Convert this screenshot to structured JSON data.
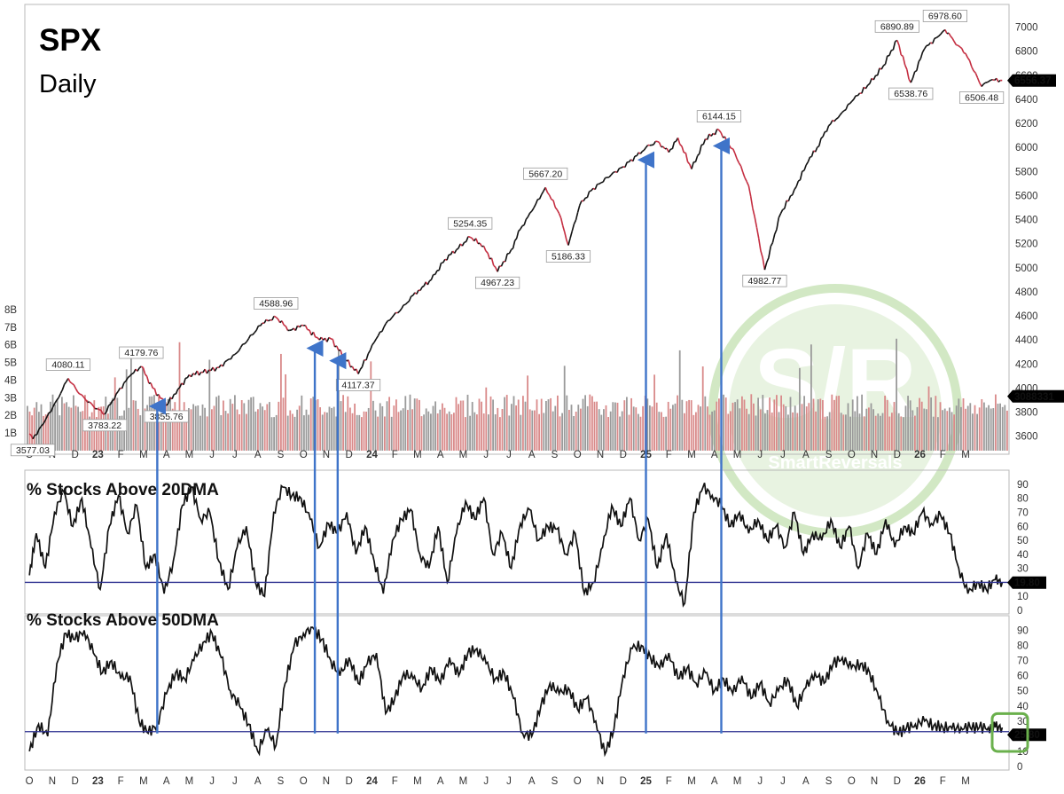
{
  "header": {
    "symbol": "SPX",
    "interval": "Daily"
  },
  "watermark": {
    "text": "SmartReversals",
    "monogram": "S/R"
  },
  "chart_data": [
    {
      "type": "line",
      "title": "SPX",
      "subtitle": "Daily",
      "ylim": [
        3450,
        7100
      ],
      "yticks": [
        3600,
        3800,
        4000,
        4200,
        4400,
        4600,
        4800,
        5000,
        5200,
        5400,
        5600,
        5800,
        6000,
        6200,
        6400,
        6600,
        6800,
        7000
      ],
      "last_value": "6556.37",
      "x": [
        0,
        0.15,
        0.6,
        1.2,
        1.7,
        2.2,
        2.8,
        3.3,
        3.8,
        4.4,
        4.9,
        5.4,
        6.0,
        6.5,
        7.0,
        7.6,
        8.3,
        9.0,
        9.6,
        10.2,
        10.8,
        11.4,
        12.0,
        12.7,
        13.2,
        13.8,
        14.4,
        15.1,
        15.7,
        16.3,
        16.8,
        17.2,
        17.6,
        18.2,
        18.7,
        19.3,
        19.9,
        20.5,
        21.1,
        21.5,
        22.0,
        22.6,
        23.2,
        23.6,
        24.1,
        24.6,
        25.3,
        26.0,
        26.6,
        27.0,
        27.5,
        28.0,
        28.4,
        29.0,
        29.6,
        30.2,
        30.9,
        31.5,
        32.2,
        32.9,
        33.5,
        34.1,
        34.5,
        35.0,
        35.5,
        36.1,
        36.8,
        37.4,
        38.0,
        38.6,
        39.2,
        39.9,
        40.1,
        40.5,
        41.0,
        41.7,
        42.1,
        42.6
      ],
      "values": [
        3620,
        3577.03,
        3700,
        3900,
        4080.11,
        3950,
        3850,
        3783.22,
        3950,
        4100,
        4179.76,
        4000,
        3855.76,
        3990,
        4110,
        4130,
        4170,
        4280,
        4410,
        4540,
        4588.96,
        4480,
        4520,
        4400,
        4410,
        4250,
        4117.37,
        4380,
        4560,
        4660,
        4770,
        4840,
        4900,
        5070,
        5150,
        5254.35,
        5180,
        4967.23,
        5150,
        5320,
        5470,
        5667.2,
        5450,
        5186.33,
        5520,
        5640,
        5750,
        5840,
        5930,
        6000,
        6050,
        5960,
        6080,
        5820,
        6070,
        6144.15,
        5950,
        5680,
        4982.77,
        5450,
        5650,
        5880,
        6000,
        6180,
        6270,
        6400,
        6530,
        6680,
        6890.89,
        6538.76,
        6820,
        6940,
        6978.6,
        6880,
        6780,
        6506.48,
        6560,
        6556.37
      ],
      "peaks": [
        {
          "text": "3577.03",
          "i": 1,
          "pos": "below"
        },
        {
          "text": "4080.11",
          "i": 4,
          "pos": "above"
        },
        {
          "text": "3783.22",
          "i": 7,
          "pos": "below"
        },
        {
          "text": "4179.76",
          "i": 10,
          "pos": "above"
        },
        {
          "text": "3855.76",
          "i": 12,
          "pos": "below"
        },
        {
          "text": "4588.96",
          "i": 20,
          "pos": "above"
        },
        {
          "text": "4117.37",
          "i": 26,
          "pos": "below"
        },
        {
          "text": "5254.35",
          "i": 35,
          "pos": "above"
        },
        {
          "text": "4967.23",
          "i": 37,
          "pos": "below"
        },
        {
          "text": "5667.20",
          "i": 41,
          "pos": "above"
        },
        {
          "text": "5186.33",
          "i": 43,
          "pos": "below"
        },
        {
          "text": "6144.15",
          "i": 55,
          "pos": "above"
        },
        {
          "text": "4982.77",
          "i": 58,
          "pos": "below"
        },
        {
          "text": "6890.89",
          "i": 68,
          "pos": "above"
        },
        {
          "text": "6538.76",
          "i": 69,
          "pos": "below"
        },
        {
          "text": "6978.60",
          "i": 72,
          "pos": "above"
        },
        {
          "text": "6506.48",
          "i": 75,
          "pos": "below"
        }
      ],
      "volume": {
        "series_name": "Volume",
        "yticks": [
          "1B",
          "2B",
          "3B",
          "4B",
          "5B",
          "6B",
          "7B",
          "8B"
        ],
        "ylim": [
          0,
          8.8
        ],
        "last_value": "3088331"
      }
    },
    {
      "type": "line",
      "title": "% Stocks Above 20DMA",
      "ylim": [
        0,
        95
      ],
      "yticks": [
        0,
        10,
        20,
        30,
        40,
        50,
        60,
        70,
        80,
        90
      ],
      "threshold": 20,
      "last_value": "19.80",
      "x": [
        0,
        0.3,
        0.7,
        1.1,
        1.5,
        1.9,
        2.3,
        2.7,
        3.1,
        3.5,
        3.9,
        4.3,
        4.7,
        5.1,
        5.5,
        5.9,
        6.3,
        6.7,
        7.1,
        7.5,
        7.9,
        8.3,
        8.7,
        9.1,
        9.5,
        9.9,
        10.3,
        10.7,
        11.1,
        11.5,
        11.9,
        12.3,
        12.7,
        13.1,
        13.5,
        13.9,
        14.3,
        14.7,
        15.1,
        15.5,
        15.9,
        16.3,
        16.7,
        17.1,
        17.5,
        17.9,
        18.3,
        18.7,
        19.1,
        19.5,
        19.9,
        20.3,
        20.7,
        21.1,
        21.5,
        21.9,
        22.3,
        22.7,
        23.1,
        23.5,
        23.9,
        24.3,
        24.7,
        25.1,
        25.5,
        25.9,
        26.3,
        26.7,
        27.1,
        27.5,
        27.9,
        28.3,
        28.7,
        29.1,
        29.5,
        29.9,
        30.3,
        30.7,
        31.1,
        31.5,
        31.9,
        32.3,
        32.7,
        33.1,
        33.5,
        33.9,
        34.3,
        34.7,
        35.1,
        35.5,
        35.9,
        36.3,
        36.7,
        37.1,
        37.5,
        37.9,
        38.3,
        38.7,
        39.1,
        39.5,
        39.9,
        40.3,
        40.7,
        41.1,
        41.5,
        41.9,
        42.3,
        42.6
      ],
      "values": [
        25,
        55,
        30,
        70,
        85,
        60,
        80,
        45,
        15,
        60,
        82,
        55,
        75,
        30,
        40,
        12,
        35,
        75,
        88,
        65,
        70,
        35,
        15,
        45,
        60,
        20,
        10,
        70,
        88,
        82,
        80,
        65,
        45,
        62,
        55,
        70,
        40,
        60,
        35,
        12,
        50,
        65,
        72,
        40,
        30,
        60,
        20,
        55,
        78,
        65,
        80,
        40,
        55,
        30,
        62,
        72,
        50,
        60,
        58,
        40,
        55,
        12,
        20,
        45,
        75,
        60,
        80,
        50,
        65,
        30,
        55,
        20,
        5,
        70,
        88,
        82,
        75,
        60,
        70,
        55,
        65,
        50,
        60,
        45,
        70,
        40,
        55,
        50,
        65,
        45,
        60,
        30,
        55,
        40,
        65,
        45,
        60,
        55,
        70,
        62,
        68,
        55,
        30,
        12,
        20,
        15,
        22,
        19.8
      ]
    },
    {
      "type": "line",
      "title": "% Stocks Above 50DMA",
      "ylim": [
        0,
        95
      ],
      "yticks": [
        0,
        10,
        20,
        30,
        40,
        50,
        60,
        70,
        80,
        90
      ],
      "threshold": 23,
      "last_value": "25.80",
      "x": [
        0,
        0.4,
        0.8,
        1.2,
        1.6,
        2.0,
        2.4,
        2.8,
        3.2,
        3.6,
        4.0,
        4.4,
        4.8,
        5.2,
        5.6,
        6.0,
        6.4,
        6.8,
        7.2,
        7.6,
        8.0,
        8.4,
        8.8,
        9.2,
        9.6,
        10.0,
        10.4,
        10.8,
        11.2,
        11.6,
        12.0,
        12.4,
        12.8,
        13.2,
        13.6,
        14.0,
        14.4,
        14.8,
        15.2,
        15.6,
        16.0,
        16.4,
        16.8,
        17.2,
        17.6,
        18.0,
        18.4,
        18.8,
        19.2,
        19.6,
        20.0,
        20.4,
        20.8,
        21.2,
        21.6,
        22.0,
        22.4,
        22.8,
        23.2,
        23.6,
        24.0,
        24.4,
        24.8,
        25.2,
        25.6,
        26.0,
        26.4,
        26.8,
        27.2,
        27.6,
        28.0,
        28.4,
        28.8,
        29.2,
        29.6,
        30.0,
        30.4,
        30.8,
        31.2,
        31.6,
        32.0,
        32.4,
        32.8,
        33.2,
        33.6,
        34.0,
        34.4,
        34.8,
        35.2,
        35.6,
        36.0,
        36.4,
        36.8,
        37.2,
        37.6,
        38.0,
        38.4,
        38.8,
        39.2,
        39.6,
        40.0,
        40.4,
        40.8,
        41.2,
        41.6,
        42.0,
        42.3,
        42.6
      ],
      "values": [
        10,
        28,
        20,
        68,
        88,
        84,
        90,
        75,
        62,
        70,
        58,
        60,
        30,
        22,
        28,
        48,
        62,
        58,
        70,
        82,
        88,
        72,
        50,
        40,
        28,
        10,
        24,
        14,
        55,
        80,
        88,
        92,
        84,
        70,
        60,
        72,
        55,
        68,
        75,
        35,
        45,
        62,
        58,
        52,
        65,
        55,
        72,
        60,
        75,
        78,
        68,
        58,
        62,
        45,
        22,
        20,
        40,
        55,
        48,
        52,
        38,
        45,
        30,
        8,
        25,
        60,
        78,
        80,
        72,
        65,
        75,
        58,
        65,
        55,
        62,
        50,
        58,
        48,
        60,
        45,
        55,
        42,
        50,
        58,
        40,
        52,
        62,
        55,
        68,
        72,
        65,
        68,
        62,
        45,
        30,
        22,
        25,
        28,
        30,
        27,
        26,
        25,
        25.8,
        25.8,
        25.8,
        25.8,
        25.8,
        25.8
      ]
    }
  ],
  "x_axis": {
    "ticks": [
      {
        "t": 0.0,
        "label": "O"
      },
      {
        "t": 1.0,
        "label": "N"
      },
      {
        "t": 2.0,
        "label": "D"
      },
      {
        "t": 3.0,
        "label": "23",
        "year": true
      },
      {
        "t": 4.0,
        "label": "F"
      },
      {
        "t": 5.0,
        "label": "M"
      },
      {
        "t": 6.0,
        "label": "A"
      },
      {
        "t": 7.0,
        "label": "M"
      },
      {
        "t": 8.0,
        "label": "J"
      },
      {
        "t": 9.0,
        "label": "J"
      },
      {
        "t": 10.0,
        "label": "A"
      },
      {
        "t": 11.0,
        "label": "S"
      },
      {
        "t": 12.0,
        "label": "O"
      },
      {
        "t": 13.0,
        "label": "N"
      },
      {
        "t": 14.0,
        "label": "D"
      },
      {
        "t": 15.0,
        "label": "24",
        "year": true
      },
      {
        "t": 16.0,
        "label": "F"
      },
      {
        "t": 17.0,
        "label": "M"
      },
      {
        "t": 18.0,
        "label": "A"
      },
      {
        "t": 19.0,
        "label": "M"
      },
      {
        "t": 20.0,
        "label": "J"
      },
      {
        "t": 21.0,
        "label": "J"
      },
      {
        "t": 22.0,
        "label": "A"
      },
      {
        "t": 23.0,
        "label": "S"
      },
      {
        "t": 24.0,
        "label": "O"
      },
      {
        "t": 25.0,
        "label": "N"
      },
      {
        "t": 26.0,
        "label": "D"
      },
      {
        "t": 27.0,
        "label": "25",
        "year": true
      },
      {
        "t": 28.0,
        "label": "F"
      },
      {
        "t": 29.0,
        "label": "M"
      },
      {
        "t": 30.0,
        "label": "A"
      },
      {
        "t": 31.0,
        "label": "M"
      },
      {
        "t": 32.0,
        "label": "J"
      },
      {
        "t": 33.0,
        "label": "J"
      },
      {
        "t": 34.0,
        "label": "A"
      },
      {
        "t": 35.0,
        "label": "S"
      },
      {
        "t": 36.0,
        "label": "O"
      },
      {
        "t": 37.0,
        "label": "N"
      },
      {
        "t": 38.0,
        "label": "D"
      },
      {
        "t": 39.0,
        "label": "26",
        "year": true
      },
      {
        "t": 40.0,
        "label": "F"
      },
      {
        "t": 41.0,
        "label": "M"
      }
    ]
  },
  "arrows": [
    {
      "t": 5.6
    },
    {
      "t": 12.5
    },
    {
      "t": 13.5
    },
    {
      "t": 27.0
    },
    {
      "t": 30.3
    }
  ],
  "colors": {
    "price_up": "#111111",
    "price_down": "#c42d40",
    "volume_up": "#9a9a9a",
    "volume_down": "#d98a8a",
    "arrow": "#3f74c9",
    "threshold": "#2b2f8f",
    "highlight": "#6ab04c",
    "watermark": "#7fbf5a"
  }
}
